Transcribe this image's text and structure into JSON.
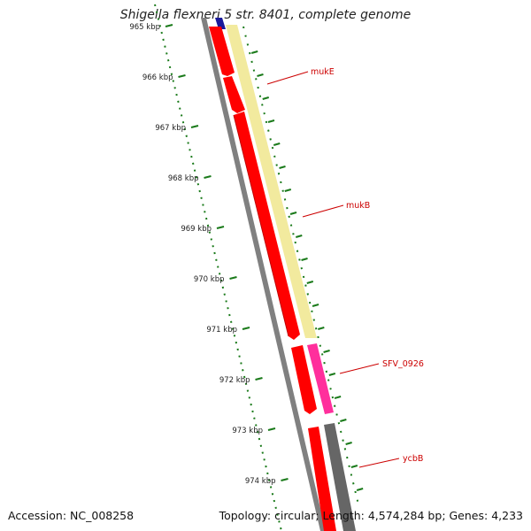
{
  "title": {
    "species": "Shigella flexneri 5 str. 8401, complete genome"
  },
  "footer": {
    "accession_label": "Accession:",
    "accession": "NC_008258",
    "topology_label": "Topology:",
    "topology": "circular",
    "length_label": "Length:",
    "length": "4,574,284 bp",
    "genes_label": "Genes:",
    "genes": "4,233"
  },
  "ruler": {
    "ticks": [
      "965 kbp",
      "966 kbp",
      "967 kbp",
      "968 kbp",
      "969 kbp",
      "970 kbp",
      "971 kbp",
      "972 kbp",
      "973 kbp",
      "974 kbp"
    ],
    "color": "#1a7a1a"
  },
  "gene_labels": [
    "mukE",
    "mukB",
    "SFV_0926",
    "ycbB"
  ],
  "colors": {
    "cds": "#ff0000",
    "cds_dark": "#c00000",
    "gene_track": "#f2ea9e",
    "pink_feature": "#ff2f9c",
    "grey_feature": "#666666",
    "backbone": "#808080",
    "blue_feature": "#1a1a9a",
    "label_line": "#cc0000"
  }
}
